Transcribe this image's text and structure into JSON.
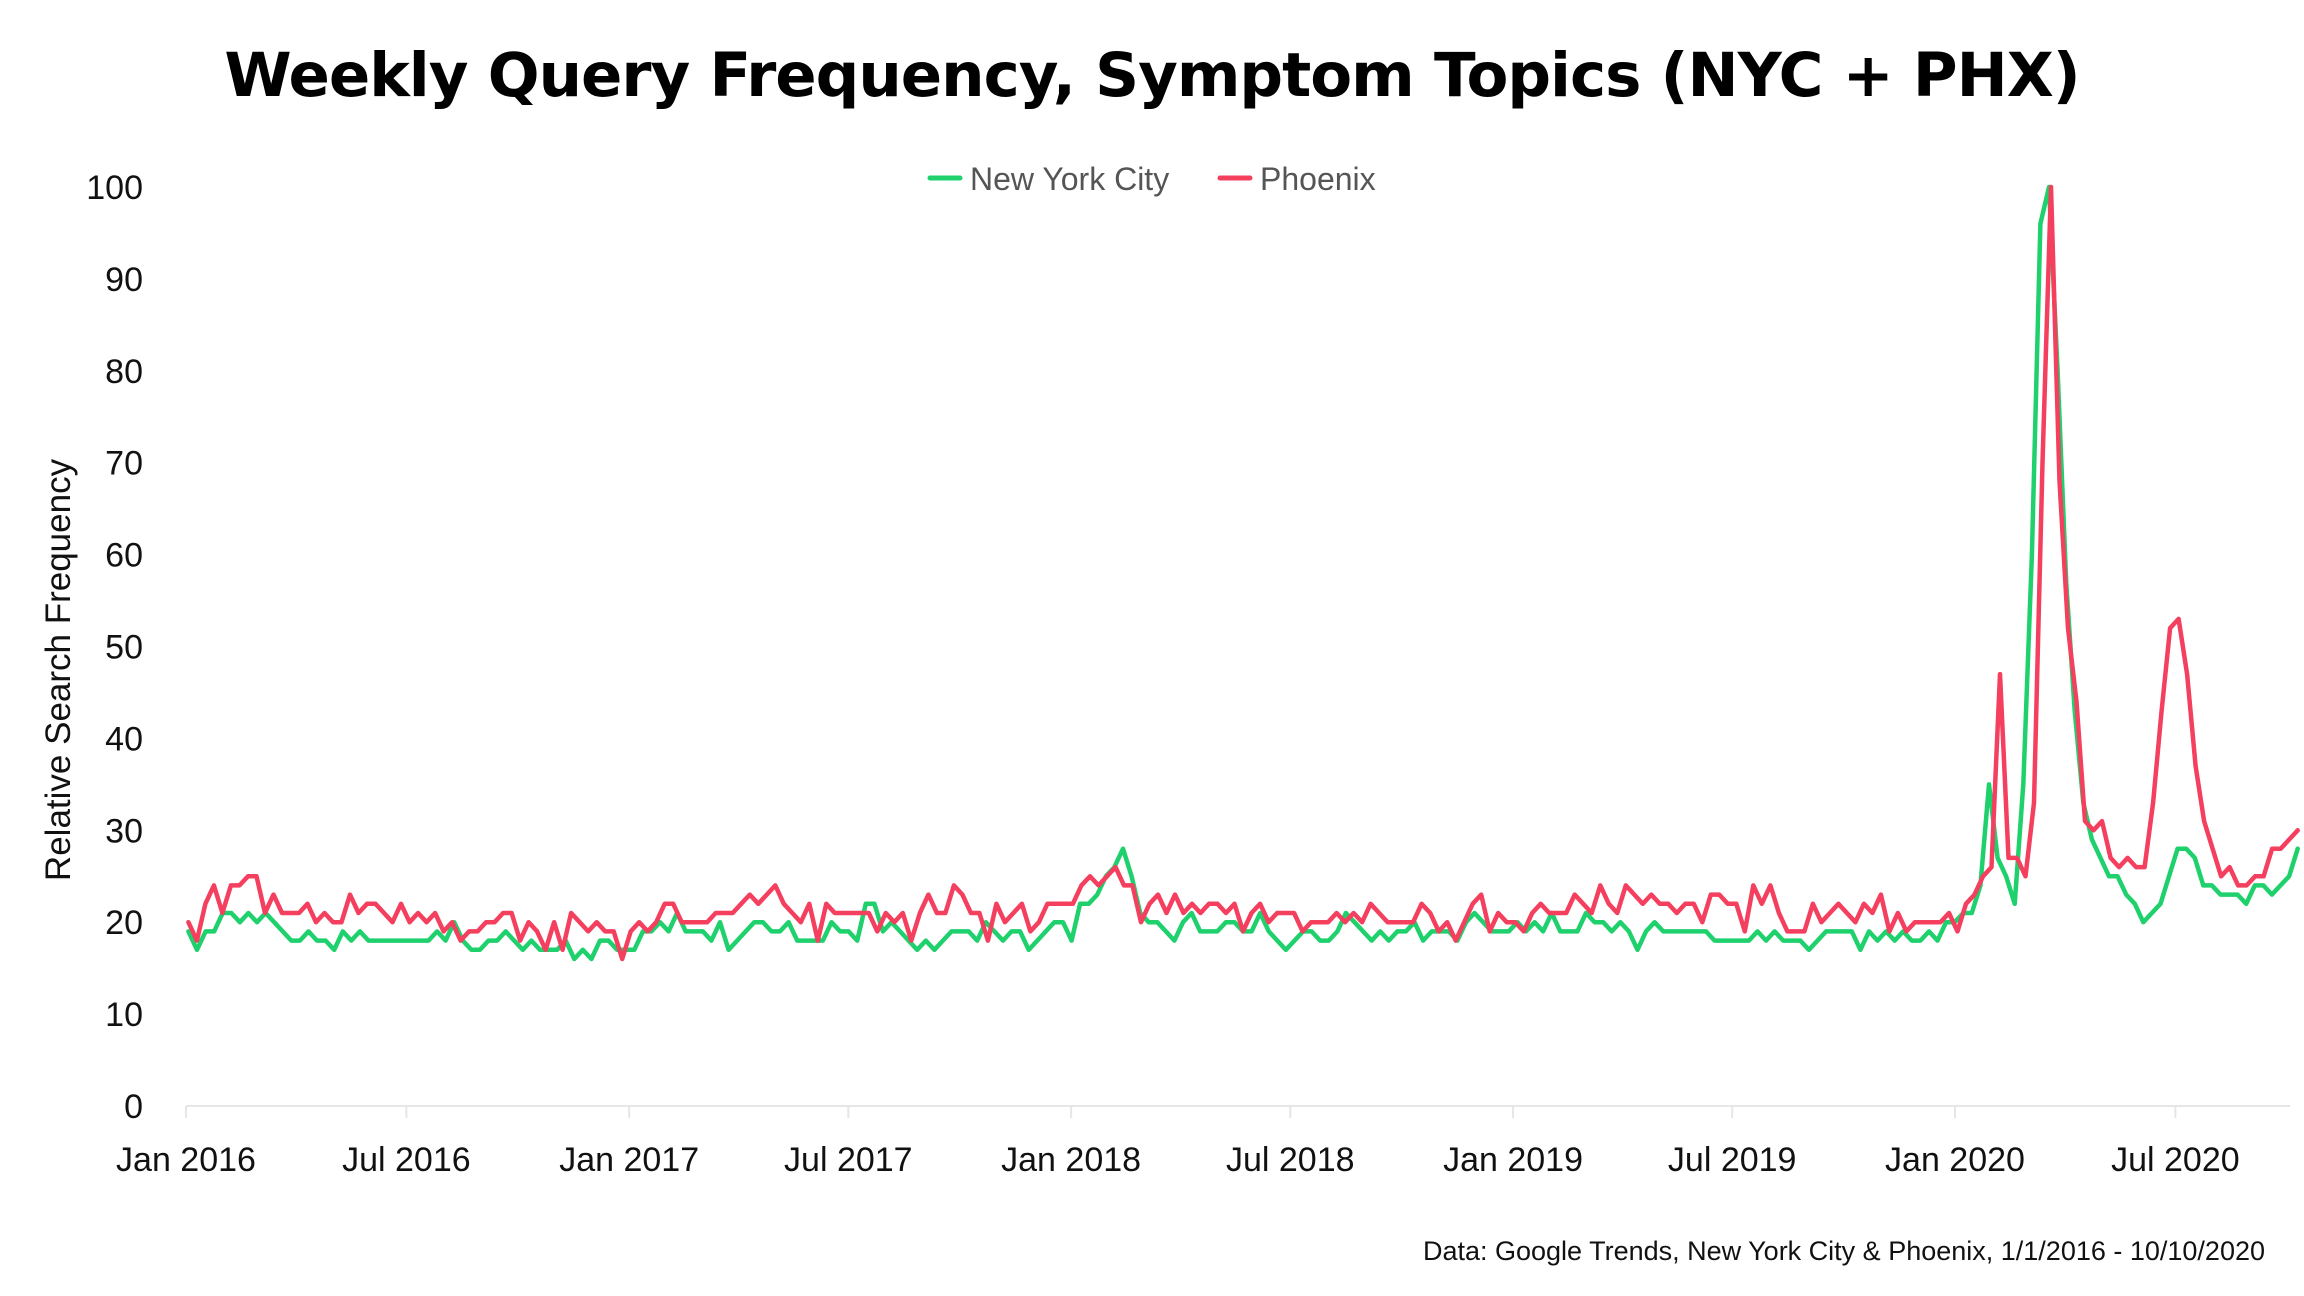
{
  "chart_data": {
    "type": "line",
    "title": "Weekly Query Frequency, Symptom Topics (NYC + PHX)",
    "xlabel": "",
    "ylabel": "Relative Search Frequency",
    "source_note": "Data: Google Trends, New York City & Phoenix, 1/1/2016 - 10/10/2020",
    "x_start": "2016-01-03",
    "x_end": "2020-10-10",
    "ylim": [
      0,
      100
    ],
    "y_ticks": [
      0,
      10,
      20,
      30,
      40,
      50,
      60,
      70,
      80,
      90,
      100
    ],
    "x_ticks": [
      {
        "label": "Jan 2016",
        "date": "2016-01-01"
      },
      {
        "label": "Jul 2016",
        "date": "2016-07-01"
      },
      {
        "label": "Jan 2017",
        "date": "2017-01-01"
      },
      {
        "label": "Jul 2017",
        "date": "2017-07-01"
      },
      {
        "label": "Jan 2018",
        "date": "2018-01-01"
      },
      {
        "label": "Jul 2018",
        "date": "2018-07-01"
      },
      {
        "label": "Jan 2019",
        "date": "2019-01-01"
      },
      {
        "label": "Jul 2019",
        "date": "2019-07-01"
      },
      {
        "label": "Jan 2020",
        "date": "2020-01-01"
      },
      {
        "label": "Jul 2020",
        "date": "2020-07-01"
      }
    ],
    "grid": false,
    "legend_position": "top-center",
    "series": [
      {
        "name": "New York City",
        "color": "#1ed16d",
        "values": [
          19,
          17,
          19,
          19,
          21,
          21,
          20,
          21,
          20,
          21,
          20,
          19,
          18,
          18,
          19,
          18,
          18,
          17,
          19,
          18,
          19,
          18,
          18,
          18,
          18,
          18,
          18,
          18,
          18,
          19,
          18,
          20,
          18,
          17,
          17,
          18,
          18,
          19,
          18,
          17,
          18,
          17,
          17,
          17,
          18,
          16,
          17,
          16,
          18,
          18,
          17,
          17,
          17,
          19,
          19,
          20,
          19,
          21,
          19,
          19,
          19,
          18,
          20,
          17,
          18,
          19,
          20,
          20,
          19,
          19,
          20,
          18,
          18,
          18,
          18,
          20,
          19,
          19,
          18,
          22,
          22,
          19,
          20,
          19,
          18,
          17,
          18,
          17,
          18,
          19,
          19,
          19,
          18,
          20,
          19,
          18,
          19,
          19,
          17,
          18,
          19,
          20,
          20,
          18,
          22,
          22,
          23,
          25,
          26,
          28,
          25,
          21,
          20,
          20,
          19,
          18,
          20,
          21,
          19,
          19,
          19,
          20,
          20,
          19,
          19,
          21,
          19,
          18,
          17,
          18,
          19,
          19,
          18,
          18,
          19,
          21,
          20,
          19,
          18,
          19,
          18,
          19,
          19,
          20,
          18,
          19,
          19,
          19,
          18,
          20,
          21,
          20,
          19,
          19,
          19,
          20,
          19,
          20,
          19,
          21,
          19,
          19,
          19,
          21,
          20,
          20,
          19,
          20,
          19,
          17,
          19,
          20,
          19,
          19,
          19,
          19,
          19,
          19,
          18,
          18,
          18,
          18,
          18,
          19,
          18,
          19,
          18,
          18,
          18,
          17,
          18,
          19,
          19,
          19,
          19,
          17,
          19,
          18,
          19,
          18,
          19,
          18,
          18,
          19,
          18,
          20,
          20,
          21,
          21,
          24,
          35,
          27,
          25,
          22,
          35,
          60,
          96,
          100,
          80,
          57,
          43,
          33,
          29,
          27,
          25,
          25,
          23,
          22,
          20,
          21,
          22,
          25,
          28,
          28,
          27,
          24,
          24,
          23,
          23,
          23,
          22,
          24,
          24,
          23,
          24,
          25,
          28
        ]
      },
      {
        "name": "Phoenix",
        "color": "#f43f5e",
        "values": [
          20,
          18,
          22,
          24,
          21,
          24,
          24,
          25,
          25,
          21,
          23,
          21,
          21,
          21,
          22,
          20,
          21,
          20,
          20,
          23,
          21,
          22,
          22,
          21,
          20,
          22,
          20,
          21,
          20,
          21,
          19,
          20,
          18,
          19,
          19,
          20,
          20,
          21,
          21,
          18,
          20,
          19,
          17,
          20,
          17,
          21,
          20,
          19,
          20,
          19,
          19,
          16,
          19,
          20,
          19,
          20,
          22,
          22,
          20,
          20,
          20,
          20,
          21,
          21,
          21,
          22,
          23,
          22,
          23,
          24,
          22,
          21,
          20,
          22,
          18,
          22,
          21,
          21,
          21,
          21,
          21,
          19,
          21,
          20,
          21,
          18,
          21,
          23,
          21,
          21,
          24,
          23,
          21,
          21,
          18,
          22,
          20,
          21,
          22,
          19,
          20,
          22,
          22,
          22,
          22,
          24,
          25,
          24,
          25,
          26,
          24,
          24,
          20,
          22,
          23,
          21,
          23,
          21,
          22,
          21,
          22,
          22,
          21,
          22,
          19,
          21,
          22,
          20,
          21,
          21,
          21,
          19,
          20,
          20,
          20,
          21,
          20,
          21,
          20,
          22,
          21,
          20,
          20,
          20,
          20,
          22,
          21,
          19,
          20,
          18,
          20,
          22,
          23,
          19,
          21,
          20,
          20,
          19,
          21,
          22,
          21,
          21,
          21,
          23,
          22,
          21,
          24,
          22,
          21,
          24,
          23,
          22,
          23,
          22,
          22,
          21,
          22,
          22,
          20,
          23,
          23,
          22,
          22,
          19,
          24,
          22,
          24,
          21,
          19,
          19,
          19,
          22,
          20,
          21,
          22,
          21,
          20,
          22,
          21,
          23,
          19,
          21,
          19,
          20,
          20,
          20,
          20,
          21,
          19,
          22,
          23,
          25,
          26,
          47,
          27,
          27,
          25,
          33,
          70,
          100,
          68,
          52,
          44,
          31,
          30,
          31,
          27,
          26,
          27,
          26,
          26,
          33,
          43,
          52,
          53,
          47,
          37,
          31,
          28,
          25,
          26,
          24,
          24,
          25,
          25,
          28,
          28,
          29,
          30
        ]
      }
    ]
  }
}
